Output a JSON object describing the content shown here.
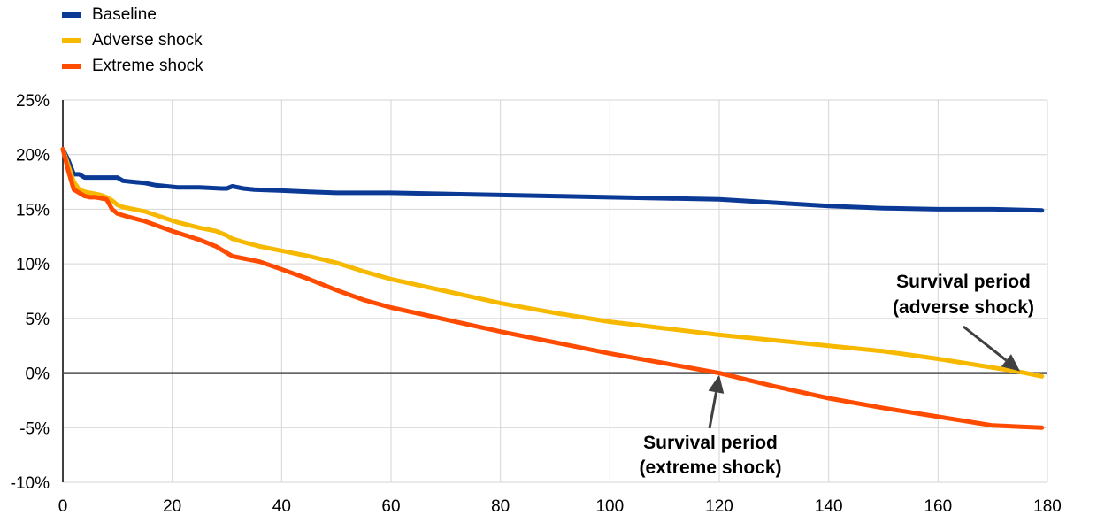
{
  "chart_data": {
    "type": "line",
    "title": "",
    "xlabel": "",
    "ylabel": "",
    "xlim": [
      0,
      180
    ],
    "ylim": [
      -10,
      25
    ],
    "x_ticks": [
      0,
      20,
      40,
      60,
      80,
      100,
      120,
      140,
      160,
      180
    ],
    "y_ticks": [
      -10,
      -5,
      0,
      5,
      10,
      15,
      20,
      25
    ],
    "y_tick_labels": [
      "-10%",
      "-5%",
      "0%",
      "5%",
      "10%",
      "15%",
      "20%",
      "25%"
    ],
    "grid": true,
    "legend_position": "top-left",
    "series": [
      {
        "name": "Baseline",
        "color": "#0b3a96",
        "points": [
          [
            0,
            20.5
          ],
          [
            1,
            19.5
          ],
          [
            2,
            18.2
          ],
          [
            3,
            18.2
          ],
          [
            4,
            17.9
          ],
          [
            5,
            17.9
          ],
          [
            6,
            17.9
          ],
          [
            7,
            17.9
          ],
          [
            8,
            17.9
          ],
          [
            9,
            17.9
          ],
          [
            10,
            17.9
          ],
          [
            11,
            17.6
          ],
          [
            13,
            17.5
          ],
          [
            15,
            17.4
          ],
          [
            17,
            17.2
          ],
          [
            19,
            17.1
          ],
          [
            21,
            17.0
          ],
          [
            25,
            17.0
          ],
          [
            29,
            16.9
          ],
          [
            30,
            16.9
          ],
          [
            31,
            17.1
          ],
          [
            33,
            16.9
          ],
          [
            35,
            16.8
          ],
          [
            40,
            16.7
          ],
          [
            45,
            16.6
          ],
          [
            50,
            16.5
          ],
          [
            60,
            16.5
          ],
          [
            70,
            16.4
          ],
          [
            80,
            16.3
          ],
          [
            90,
            16.2
          ],
          [
            100,
            16.1
          ],
          [
            110,
            16.0
          ],
          [
            120,
            15.9
          ],
          [
            130,
            15.6
          ],
          [
            140,
            15.3
          ],
          [
            150,
            15.1
          ],
          [
            160,
            15.0
          ],
          [
            170,
            15.0
          ],
          [
            179,
            14.9
          ]
        ]
      },
      {
        "name": "Adverse shock",
        "color": "#f7b900",
        "points": [
          [
            0,
            20.5
          ],
          [
            1,
            19.0
          ],
          [
            2,
            17.5
          ],
          [
            3,
            16.8
          ],
          [
            4,
            16.6
          ],
          [
            5,
            16.5
          ],
          [
            6,
            16.4
          ],
          [
            7,
            16.3
          ],
          [
            8,
            16.1
          ],
          [
            9,
            15.8
          ],
          [
            10,
            15.4
          ],
          [
            11,
            15.2
          ],
          [
            13,
            15.0
          ],
          [
            15,
            14.8
          ],
          [
            18,
            14.3
          ],
          [
            21,
            13.8
          ],
          [
            25,
            13.3
          ],
          [
            28,
            13.0
          ],
          [
            30,
            12.6
          ],
          [
            31,
            12.3
          ],
          [
            33,
            12.0
          ],
          [
            36,
            11.6
          ],
          [
            40,
            11.2
          ],
          [
            45,
            10.7
          ],
          [
            50,
            10.1
          ],
          [
            55,
            9.3
          ],
          [
            60,
            8.6
          ],
          [
            70,
            7.5
          ],
          [
            80,
            6.4
          ],
          [
            90,
            5.5
          ],
          [
            100,
            4.7
          ],
          [
            110,
            4.1
          ],
          [
            120,
            3.5
          ],
          [
            130,
            3.0
          ],
          [
            140,
            2.5
          ],
          [
            150,
            2.0
          ],
          [
            160,
            1.3
          ],
          [
            170,
            0.5
          ],
          [
            175,
            0.1
          ],
          [
            179,
            -0.3
          ]
        ]
      },
      {
        "name": "Extreme shock",
        "color": "#ff4b00",
        "points": [
          [
            0,
            20.5
          ],
          [
            1,
            18.5
          ],
          [
            2,
            16.8
          ],
          [
            3,
            16.5
          ],
          [
            4,
            16.2
          ],
          [
            5,
            16.1
          ],
          [
            6,
            16.1
          ],
          [
            7,
            16.0
          ],
          [
            8,
            15.9
          ],
          [
            9,
            15.0
          ],
          [
            10,
            14.6
          ],
          [
            12,
            14.3
          ],
          [
            15,
            13.9
          ],
          [
            20,
            13.0
          ],
          [
            25,
            12.2
          ],
          [
            28,
            11.6
          ],
          [
            30,
            11.0
          ],
          [
            31,
            10.7
          ],
          [
            33,
            10.5
          ],
          [
            36,
            10.2
          ],
          [
            40,
            9.5
          ],
          [
            45,
            8.6
          ],
          [
            50,
            7.6
          ],
          [
            55,
            6.7
          ],
          [
            60,
            6.0
          ],
          [
            70,
            4.9
          ],
          [
            80,
            3.8
          ],
          [
            90,
            2.8
          ],
          [
            100,
            1.8
          ],
          [
            110,
            0.9
          ],
          [
            120,
            0.0
          ],
          [
            130,
            -1.2
          ],
          [
            140,
            -2.3
          ],
          [
            150,
            -3.2
          ],
          [
            160,
            -4.0
          ],
          [
            170,
            -4.8
          ],
          [
            179,
            -5.0
          ]
        ]
      }
    ],
    "annotations": [
      {
        "lines": [
          "Survival period",
          "(adverse shock)"
        ],
        "x": 175,
        "y": 0
      },
      {
        "lines": [
          "Survival period",
          "(extreme shock)"
        ],
        "x": 120,
        "y": 0
      }
    ]
  }
}
